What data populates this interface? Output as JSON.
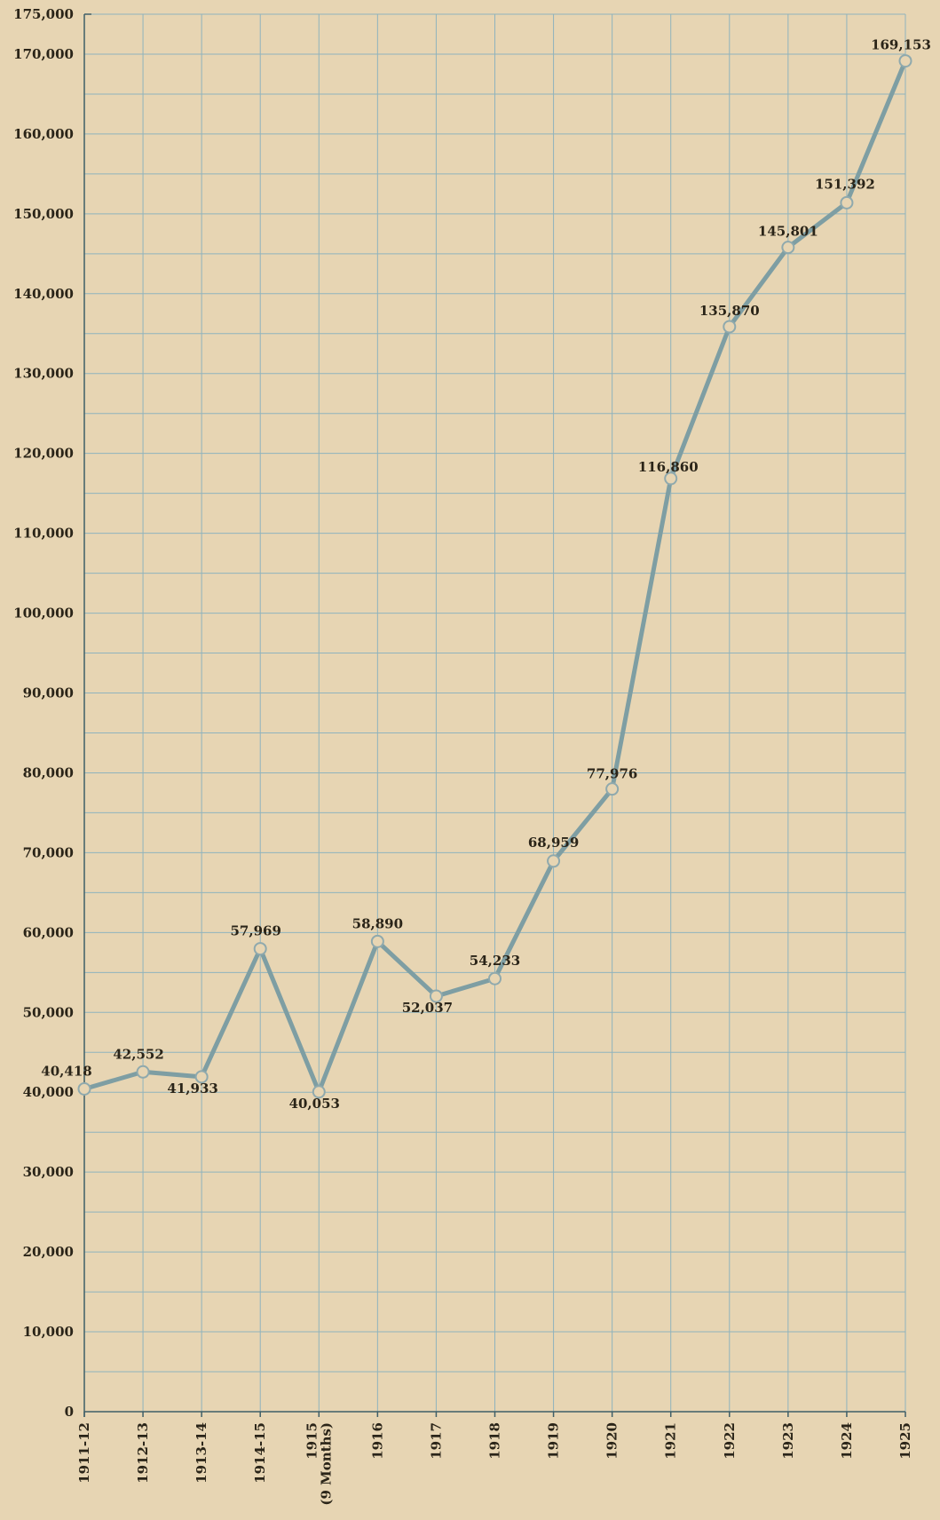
{
  "chart_data": {
    "type": "line",
    "title": "",
    "xlabel": "",
    "ylabel": "",
    "ylim": [
      0,
      175000
    ],
    "y_ticks": [
      "0",
      "10,000",
      "20,000",
      "30,000",
      "40,000",
      "50,000",
      "60,000",
      "70,000",
      "80,000",
      "90,000",
      "100,000",
      "110,000",
      "120,000",
      "130,000",
      "140,000",
      "150,000",
      "160,000",
      "170,000",
      "175,000"
    ],
    "y_tick_values": [
      0,
      10000,
      20000,
      30000,
      40000,
      50000,
      60000,
      70000,
      80000,
      90000,
      100000,
      110000,
      120000,
      130000,
      140000,
      150000,
      160000,
      170000,
      175000
    ],
    "categories": [
      "1911-12",
      "1912-13",
      "1913-14",
      "1914-15",
      "1915\n(9 Months)",
      "1916",
      "1917",
      "1918",
      "1919",
      "1920",
      "1921",
      "1922",
      "1923",
      "1924",
      "1925"
    ],
    "values": [
      40418,
      42552,
      41933,
      57969,
      40053,
      58890,
      52037,
      54233,
      68959,
      77976,
      116860,
      135870,
      145801,
      151392,
      169153
    ],
    "data_labels": [
      "40,418",
      "42,552",
      "41,933",
      "57,969",
      "40,053",
      "58,890",
      "52,037",
      "54,233",
      "68,959",
      "77,976",
      "116,860",
      "135,870",
      "145,801",
      "151,392",
      "169,153"
    ],
    "grid": true,
    "colors": {
      "line": "#7e9ea3",
      "grid": "#8fb3bd",
      "background": "#e7d5b3"
    }
  }
}
